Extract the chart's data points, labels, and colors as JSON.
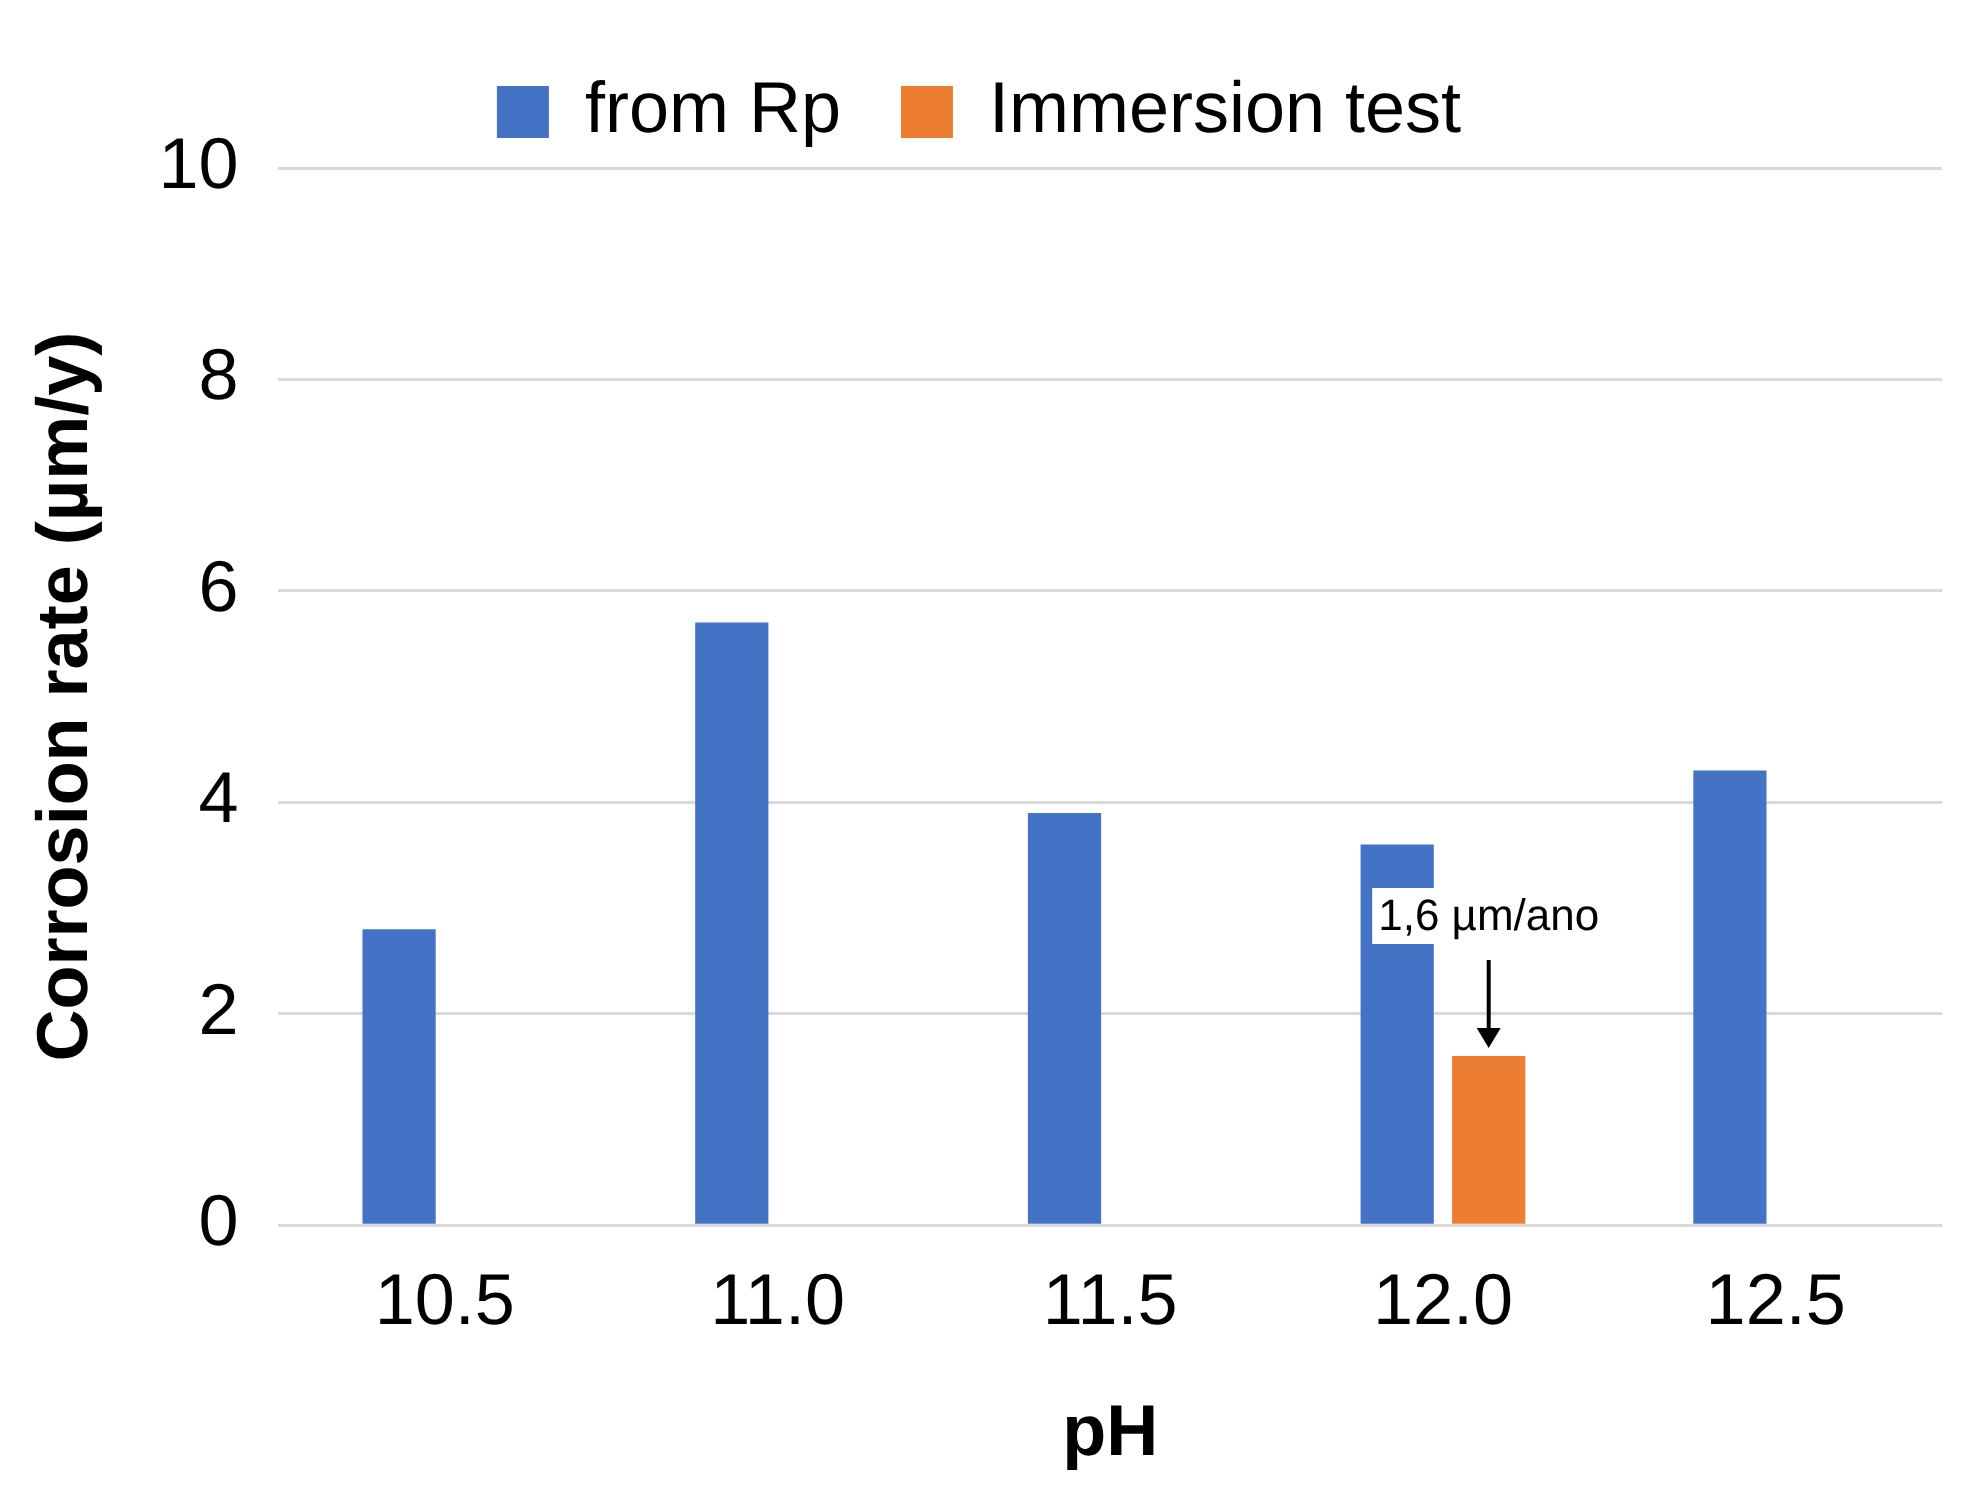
{
  "chart_data": {
    "type": "bar",
    "xlabel": "pH",
    "ylabel": "Corrosion rate (µm/y)",
    "categories": [
      "10.5",
      "11.0",
      "11.5",
      "12.0",
      "12.5"
    ],
    "series": [
      {
        "name": "from Rp",
        "color": "#4472c4",
        "values": [
          2.8,
          5.7,
          3.9,
          3.6,
          4.3
        ]
      },
      {
        "name": "Immersion test",
        "color": "#ed7d31",
        "values": [
          null,
          null,
          null,
          1.6,
          null
        ]
      }
    ],
    "ylim": [
      0,
      10
    ],
    "yticks": [
      0,
      2,
      4,
      6,
      8,
      10
    ],
    "grid": "y",
    "legend": "top",
    "annotations": [
      {
        "text": "1,6 µm/ano",
        "x": "12.0",
        "y": 1.6
      }
    ]
  }
}
